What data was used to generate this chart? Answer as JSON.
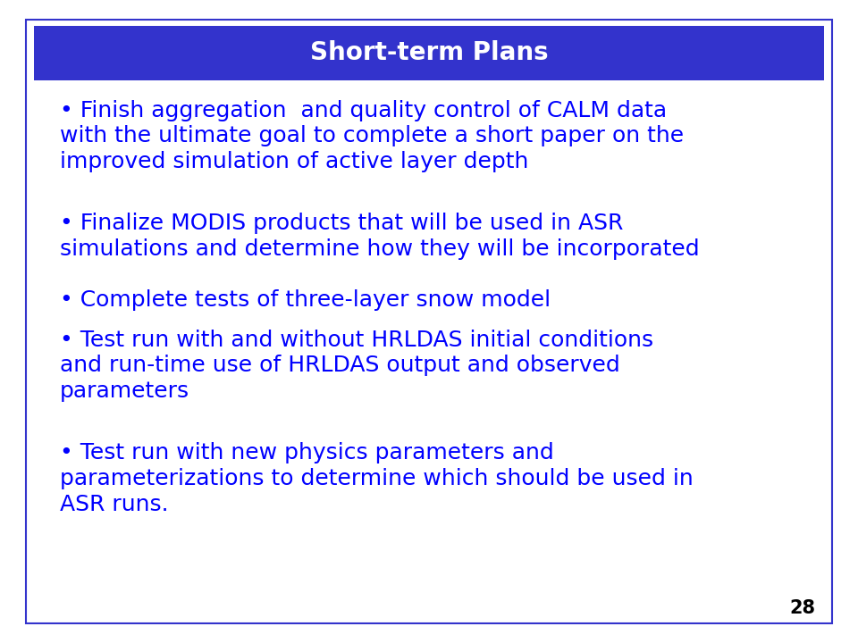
{
  "title": "Short-term Plans",
  "title_bg_color": "#3333CC",
  "title_text_color": "#FFFFFF",
  "title_fontsize": 20,
  "body_text_color": "#0000FF",
  "body_fontsize": 18,
  "background_color": "#FFFFFF",
  "slide_number": "28",
  "slide_number_color": "#000000",
  "slide_number_fontsize": 15,
  "border_color": "#3333CC",
  "bullet_points": [
    "• Finish aggregation  and quality control of CALM data\nwith the ultimate goal to complete a short paper on the\nimproved simulation of active layer depth",
    "• Finalize MODIS products that will be used in ASR\nsimulations and determine how they will be incorporated",
    "• Complete tests of three-layer snow model",
    "• Test run with and without HRLDAS initial conditions\nand run-time use of HRLDAS output and observed\nparameters",
    "• Test run with new physics parameters and\nparameterizations to determine which should be used in\nASR runs."
  ],
  "line_heights": [
    3,
    2,
    1,
    3,
    3
  ]
}
